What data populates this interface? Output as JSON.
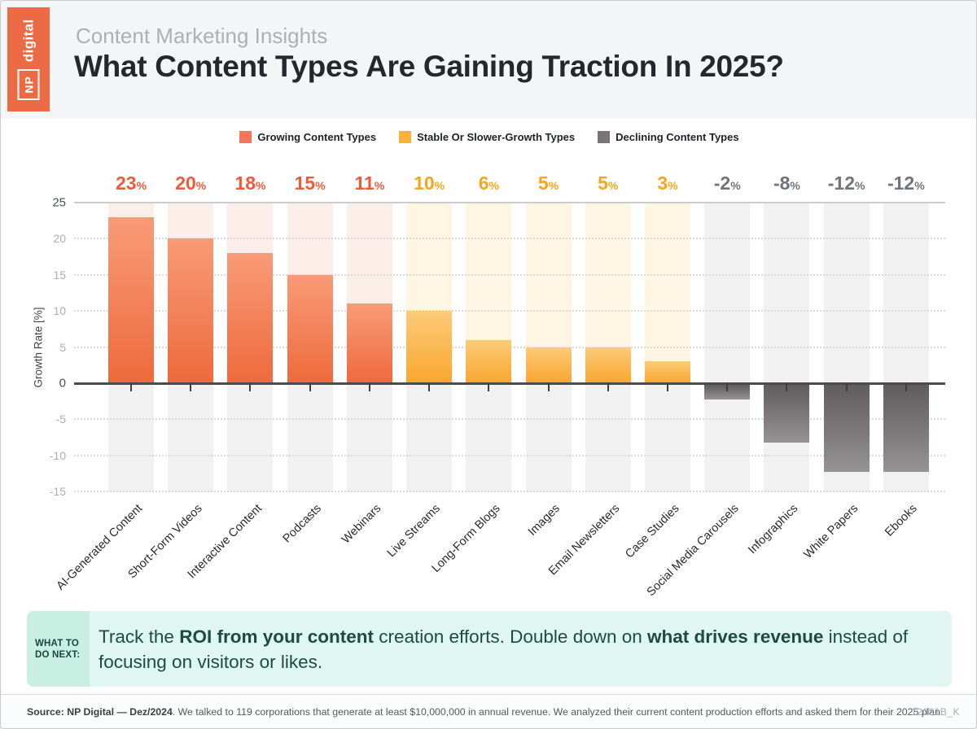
{
  "header": {
    "brand": {
      "np": "NP",
      "digital": "digital"
    },
    "kicker": "Content Marketing Insights",
    "title": "What Content Types Are Gaining Traction In 2025?"
  },
  "legend": [
    {
      "label": "Growing Content Types",
      "color": "#f2765b"
    },
    {
      "label": "Stable Or Slower-Growth Types",
      "color": "#fbb23d"
    },
    {
      "label": "Declining Content Types",
      "color": "#7a7677"
    }
  ],
  "chart_data": {
    "type": "bar",
    "title": "What Content Types Are Gaining Traction In 2025?",
    "xlabel": "",
    "ylabel": "Growth Rate [%]",
    "unit": "%",
    "ylim": [
      -16.5,
      25
    ],
    "yticks": [
      25,
      20,
      15,
      10,
      5,
      0,
      -5,
      -10,
      -15
    ],
    "grid": "dotted horizontal",
    "legend_position": "top center",
    "categories": [
      "AI-Generated Content",
      "Short-Form Videos",
      "Interactive Content",
      "Podcasts",
      "Webinars",
      "Live Streams",
      "Long-Form Blogs",
      "Images",
      "Email Newsletters",
      "Case Studies",
      "Social Media Carousels",
      "Infographics",
      "White Papers",
      "Ebooks"
    ],
    "values": [
      23,
      20,
      18,
      15,
      11,
      10,
      6,
      5,
      5,
      3,
      -2,
      -8,
      -12,
      -12
    ],
    "groups": [
      "growing",
      "growing",
      "growing",
      "growing",
      "growing",
      "stable",
      "stable",
      "stable",
      "stable",
      "stable",
      "declining",
      "declining",
      "declining",
      "declining"
    ]
  },
  "group_styles": {
    "growing": {
      "label_color": "#ee5b3b",
      "band_color": "#fbede7",
      "bar_gradient": [
        "#f89b77",
        "#ed6a3c"
      ]
    },
    "stable": {
      "label_color": "#f6a61e",
      "band_color": "#fef5e3",
      "bar_gradient": [
        "#fccb79",
        "#f9a62e"
      ]
    },
    "declining": {
      "label_color": "#6e747a",
      "band_color": "#f1f1f1",
      "bar_gradient": [
        "#615c5e",
        "#969394"
      ]
    }
  },
  "callout": {
    "tag_line1": "WHAT TO",
    "tag_line2": "DO NEXT:",
    "segments": [
      {
        "text": "Track the ",
        "bold": false
      },
      {
        "text": "ROI from your content",
        "bold": true
      },
      {
        "text": " creation efforts. Double down on ",
        "bold": false
      },
      {
        "text": "what drives revenue",
        "bold": true
      },
      {
        "text": " instead of focusing on visitors or likes.",
        "bold": false
      }
    ]
  },
  "footer": {
    "segments": [
      {
        "text": "Source:  ",
        "bold": true
      },
      {
        "text": "NP Digital — Dez/2024",
        "bold": true
      },
      {
        "text": ". We talked to 119 corporations that generate at least $10,000,000 in annual revenue. We analyzed their current content production efforts and asked them for their 2025 plan.",
        "bold": false
      }
    ],
    "doc_id": "12031B_K"
  }
}
